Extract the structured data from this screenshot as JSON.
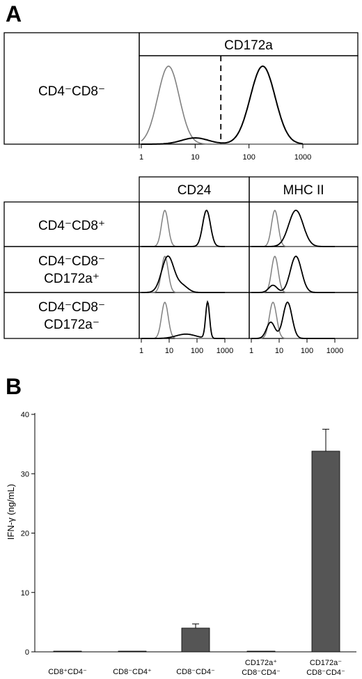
{
  "panel_a": {
    "letter": "A",
    "top": {
      "header": "CD172a",
      "row_label": "CD4⁻CD8⁻",
      "x_ticks": [
        "1",
        "10",
        "100",
        "1000"
      ]
    },
    "bottom": {
      "headers": [
        "CD24",
        "MHC II"
      ],
      "rows": [
        {
          "line1": "CD4⁻CD8⁺",
          "line2": ""
        },
        {
          "line1": "CD4⁻CD8⁻",
          "line2": "CD172a⁺"
        },
        {
          "line1": "CD4⁻CD8⁻",
          "line2": "CD172a⁻"
        }
      ],
      "x_ticks": [
        "1",
        "10",
        "100",
        "1000"
      ]
    },
    "colors": {
      "control": "#808080",
      "stain": "#000000"
    }
  },
  "panel_b": {
    "letter": "B",
    "bar_color": "#555555"
  },
  "chart_data": [
    {
      "type": "area",
      "panel": "A",
      "scale": "log",
      "xlim": [
        1,
        1000
      ],
      "header": "CD172a",
      "row": "CD4⁻CD8⁻",
      "gate": 30,
      "series": [
        {
          "name": "control",
          "color": "#808080",
          "peaks": [
            {
              "center": 3.2,
              "width": 0.2,
              "height": 1.0
            }
          ]
        },
        {
          "name": "stain",
          "color": "#000000",
          "peaks": [
            {
              "center": 180,
              "width": 0.23,
              "height": 1.0
            },
            {
              "center": 10,
              "width": 0.25,
              "height": 0.08
            }
          ]
        }
      ]
    },
    {
      "type": "area",
      "panel": "A",
      "scale": "log",
      "xlim": [
        1,
        1000
      ],
      "columns": [
        "CD24",
        "MHC II"
      ],
      "rows": [
        "CD4⁻CD8⁺",
        "CD4⁻CD8⁻ CD172a⁺",
        "CD4⁻CD8⁻ CD172a⁻"
      ],
      "cells": [
        [
          {
            "control": {
              "center": 7,
              "width": 0.12
            },
            "stain": [
              {
                "center": 220,
                "width": 0.14,
                "height": 1.0
              }
            ]
          },
          {
            "control": {
              "center": 7,
              "width": 0.12
            },
            "stain": [
              {
                "center": 40,
                "width": 0.26,
                "height": 1.0
              }
            ]
          }
        ],
        [
          {
            "control": {
              "center": 7,
              "width": 0.12
            },
            "stain": [
              {
                "center": 9,
                "width": 0.22,
                "height": 1.0
              },
              {
                "center": 30,
                "width": 0.2,
                "height": 0.18
              }
            ]
          },
          {
            "control": {
              "center": 7,
              "width": 0.12
            },
            "stain": [
              {
                "center": 40,
                "width": 0.2,
                "height": 1.0
              },
              {
                "center": 6,
                "width": 0.15,
                "height": 0.2
              }
            ]
          }
        ],
        [
          {
            "control": {
              "center": 7,
              "width": 0.12
            },
            "stain": [
              {
                "center": 240,
                "width": 0.07,
                "height": 1.0
              },
              {
                "center": 40,
                "width": 0.35,
                "height": 0.12
              }
            ]
          },
          {
            "control": {
              "center": 6,
              "width": 0.13
            },
            "stain": [
              {
                "center": 20,
                "width": 0.16,
                "height": 1.0
              },
              {
                "center": 5,
                "width": 0.15,
                "height": 0.45
              }
            ]
          }
        ]
      ]
    },
    {
      "type": "bar",
      "panel": "B",
      "ylabel": "IFN-γ (ng/mL)",
      "ylim": [
        0,
        40
      ],
      "yticks": [
        "0",
        "10",
        "20",
        "30",
        "40"
      ],
      "categories": [
        {
          "line1": "CD8⁺CD4⁻",
          "line2": ""
        },
        {
          "line1": "CD8⁻CD4⁺",
          "line2": ""
        },
        {
          "line1": "CD8⁻CD4⁻",
          "line2": ""
        },
        {
          "line1": "CD172a⁺",
          "line2": "CD8⁻CD4⁻"
        },
        {
          "line1": "CD172a⁻",
          "line2": "CD8⁻CD4⁻"
        }
      ],
      "values": [
        0.1,
        0.1,
        4.0,
        0.1,
        33.8
      ],
      "errors": [
        0,
        0,
        0.7,
        0,
        3.7
      ]
    }
  ]
}
